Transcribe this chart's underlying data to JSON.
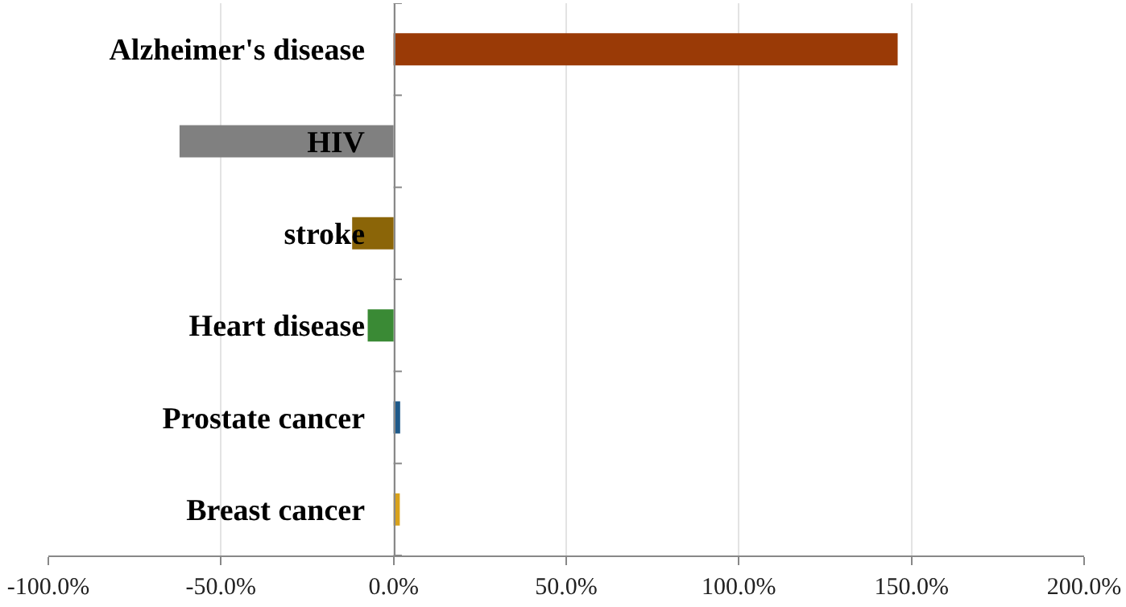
{
  "chart_data": {
    "type": "bar",
    "orientation": "horizontal",
    "categories": [
      "Alzheimer's disease",
      "HIV",
      "stroke",
      "Heart disease",
      "Prostate cancer",
      "Breast cancer"
    ],
    "values": [
      146,
      -62,
      -12,
      -7.5,
      1.9,
      1.8
    ],
    "colors": [
      "#9a3a06",
      "#808080",
      "#8b6508",
      "#3a8a35",
      "#1e5a8a",
      "#d9a21a"
    ],
    "xlim": [
      -100,
      200
    ],
    "xticks": [
      {
        "value": -100,
        "label": "-100.0%"
      },
      {
        "value": -50,
        "label": "-50.0%"
      },
      {
        "value": 0,
        "label": "0.0%"
      },
      {
        "value": 50,
        "label": "50.0%"
      },
      {
        "value": 100,
        "label": "100.0%"
      },
      {
        "value": 150,
        "label": "150.0%"
      },
      {
        "value": 200,
        "label": "200.0%"
      }
    ],
    "grid": "x"
  }
}
